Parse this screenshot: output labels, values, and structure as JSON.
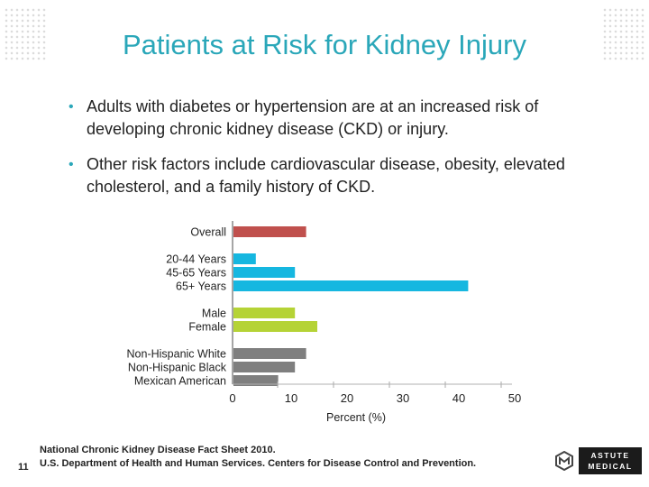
{
  "title": "Patients at Risk for Kidney Injury",
  "bullets": [
    "Adults with diabetes or hypertension are at an increased risk of developing chronic kidney disease (CKD) or injury.",
    "Other risk factors include cardiovascular disease, obesity, elevated cholesterol, and a family history of CKD."
  ],
  "chart_data": {
    "type": "bar",
    "orientation": "horizontal",
    "xlabel": "Percent (%)",
    "xlim": [
      0,
      50
    ],
    "xticks": [
      0,
      10,
      20,
      30,
      40,
      50
    ],
    "bars": [
      {
        "label": "Overall",
        "value": 13,
        "color": "#c0504d",
        "group": 0
      },
      {
        "label": "20-44 Years",
        "value": 4,
        "color": "#16b7e0",
        "group": 1
      },
      {
        "label": "45-65 Years",
        "value": 11,
        "color": "#16b7e0",
        "group": 1
      },
      {
        "label": "65+ Years",
        "value": 42,
        "color": "#16b7e0",
        "group": 1
      },
      {
        "label": "Male",
        "value": 11,
        "color": "#b5d336",
        "group": 2
      },
      {
        "label": "Female",
        "value": 15,
        "color": "#b5d336",
        "group": 2
      },
      {
        "label": "Non-Hispanic White",
        "value": 13,
        "color": "#7f7f7f",
        "group": 3
      },
      {
        "label": "Non-Hispanic Black",
        "value": 11,
        "color": "#7f7f7f",
        "group": 3
      },
      {
        "label": "Mexican American",
        "value": 8,
        "color": "#7f7f7f",
        "group": 3
      }
    ]
  },
  "footer": {
    "page_number": "11",
    "source_line1": "National Chronic Kidney Disease Fact Sheet 2010.",
    "source_line2": "U.S. Department of Health and Human Services. Centers for Disease Control and Prevention.",
    "logo_line1": "ASTUTE",
    "logo_line2": "MEDICAL"
  }
}
